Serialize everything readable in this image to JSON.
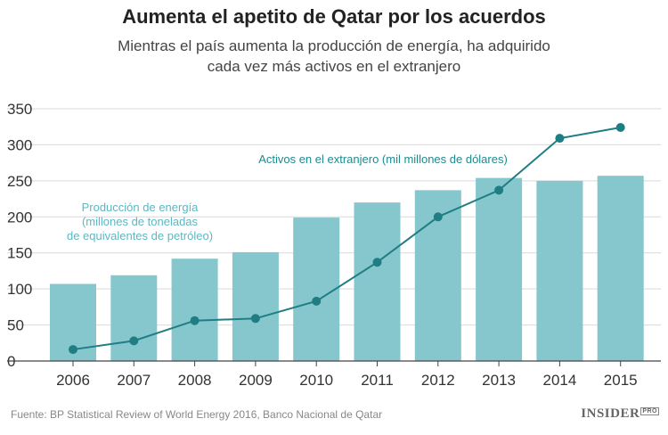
{
  "header": {
    "title": "Aumenta el apetito de Qatar por los acuerdos",
    "subtitle_line1": "Mientras el país aumenta la producción de energía, ha adquirido",
    "subtitle_line2": "cada vez más activos en el extranjero"
  },
  "footer": {
    "source": "Fuente: BP Statistical Review of World Energy 2016, Banco Nacional de Qatar",
    "logo_main": "INSIDER",
    "logo_pro": "PRO"
  },
  "colors": {
    "bar": "#86c7cd",
    "line": "#1f7e84",
    "bar_label": "#5cb8c4",
    "line_label": "#1f8a8f",
    "grid": "#d9d9d9",
    "axis_text": "#333333"
  },
  "chart_data": {
    "type": "bar+line",
    "categories": [
      "2006",
      "2007",
      "2008",
      "2009",
      "2010",
      "2011",
      "2012",
      "2013",
      "2014",
      "2015"
    ],
    "ylim": [
      0,
      350
    ],
    "yticks": [
      0,
      50,
      100,
      150,
      200,
      250,
      300,
      350
    ],
    "grid": true,
    "series": [
      {
        "name": "Producción de energía (millones de toneladas de equivalentes de petróleo)",
        "kind": "bar",
        "label_lines": [
          "Producción de energía",
          "(millones de toneladas",
          "de equivalentes de petróleo)"
        ],
        "values": [
          107,
          119,
          142,
          151,
          199,
          220,
          237,
          254,
          250,
          257
        ]
      },
      {
        "name": "Activos en el extranjero (mil millones de dólares)",
        "kind": "line",
        "label_lines": [
          "Activos en el extranjero (mil millones de dólares)"
        ],
        "values": [
          16,
          28,
          56,
          59,
          83,
          137,
          200,
          237,
          309,
          324
        ]
      }
    ]
  }
}
